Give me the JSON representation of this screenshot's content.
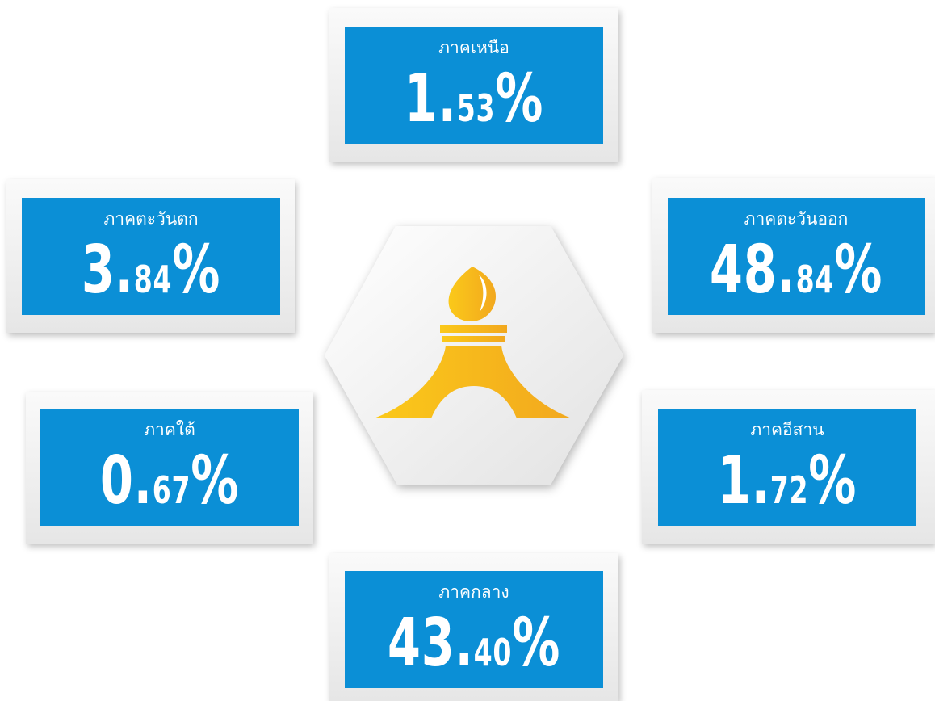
{
  "regions": [
    {
      "name": "ภาคเหนือ",
      "value": "1.53%"
    },
    {
      "name": "ภาคตะวันตก",
      "value": "3.84%"
    },
    {
      "name": "ภาคตะวันออก",
      "value": "48.84%"
    },
    {
      "name": "ภาคใต้",
      "value": "0.67%"
    },
    {
      "name": "ภาคอีสาน",
      "value": "1.72%"
    },
    {
      "name": "ภาคกลาง",
      "value": "43.40%"
    }
  ]
}
